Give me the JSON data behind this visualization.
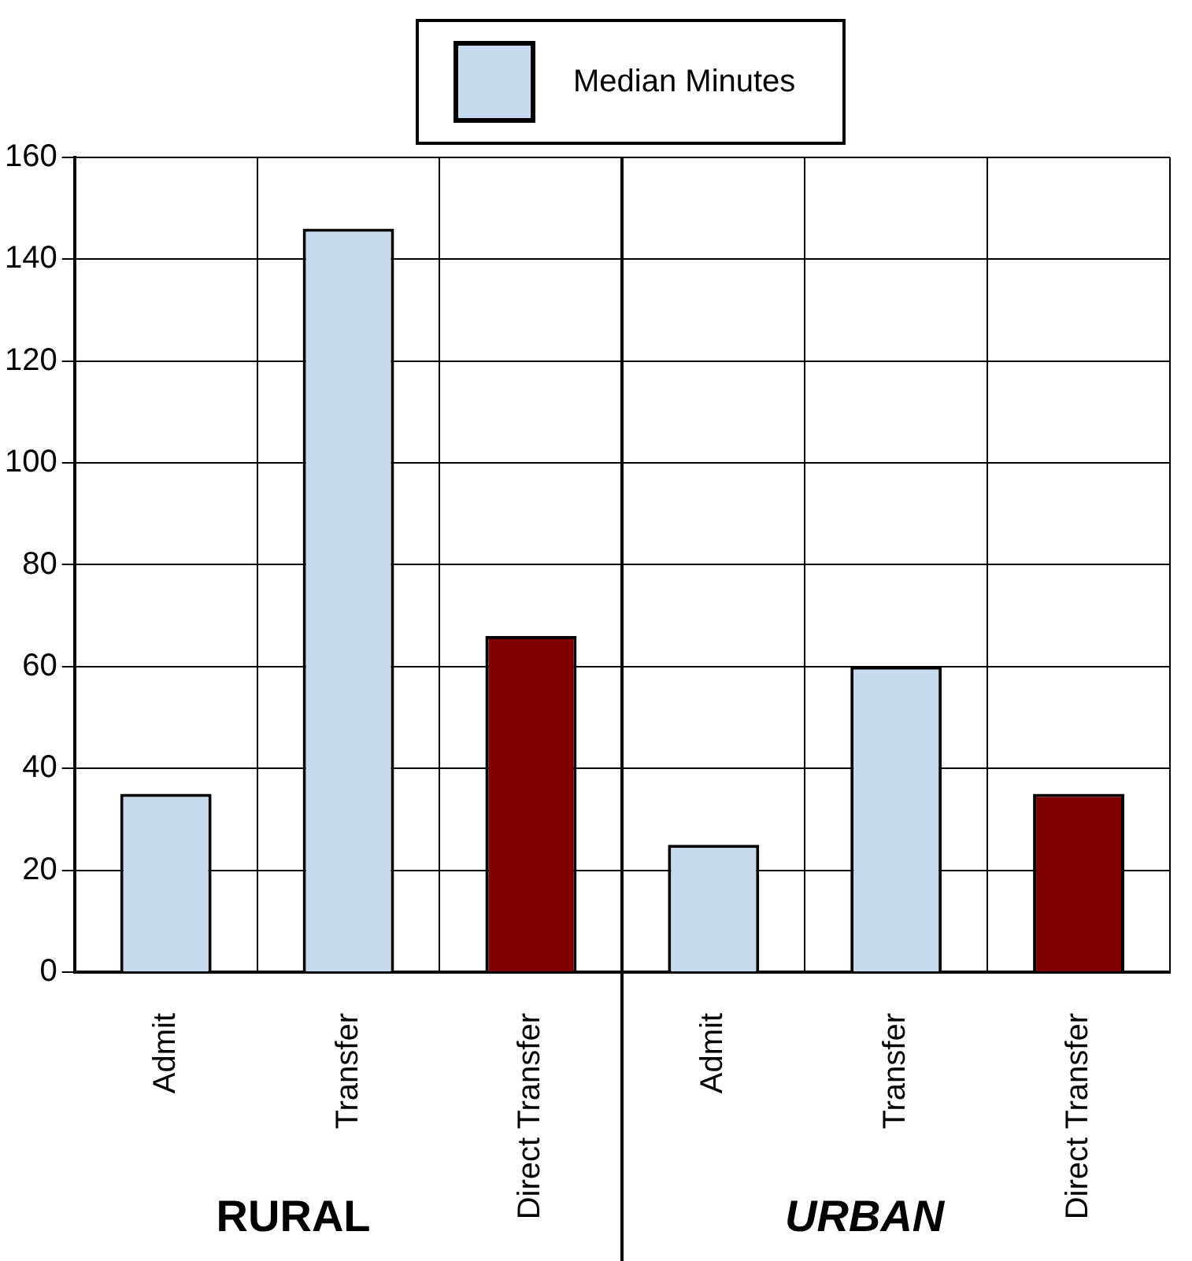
{
  "chart_data": {
    "type": "bar",
    "categories": [
      "Admit",
      "Transfer",
      "Direct Transfer",
      "Admit",
      "Transfer",
      "Direct Transfer"
    ],
    "series": [
      {
        "name": "Median Minutes",
        "color": "#c6d9ee",
        "colors": [
          "#c6d9ee",
          "#c6d9ee",
          "#800000",
          "#c6d9ee",
          "#c6d9ee",
          "#800000"
        ],
        "values": [
          35,
          146,
          66,
          25,
          60,
          35
        ]
      }
    ],
    "ylim": [
      0,
      160
    ],
    "yticks": [
      0,
      20,
      40,
      60,
      80,
      100,
      120,
      140,
      160
    ],
    "grid": true,
    "legend": "top",
    "annotations": [
      "RURAL",
      "URBAN"
    ]
  }
}
